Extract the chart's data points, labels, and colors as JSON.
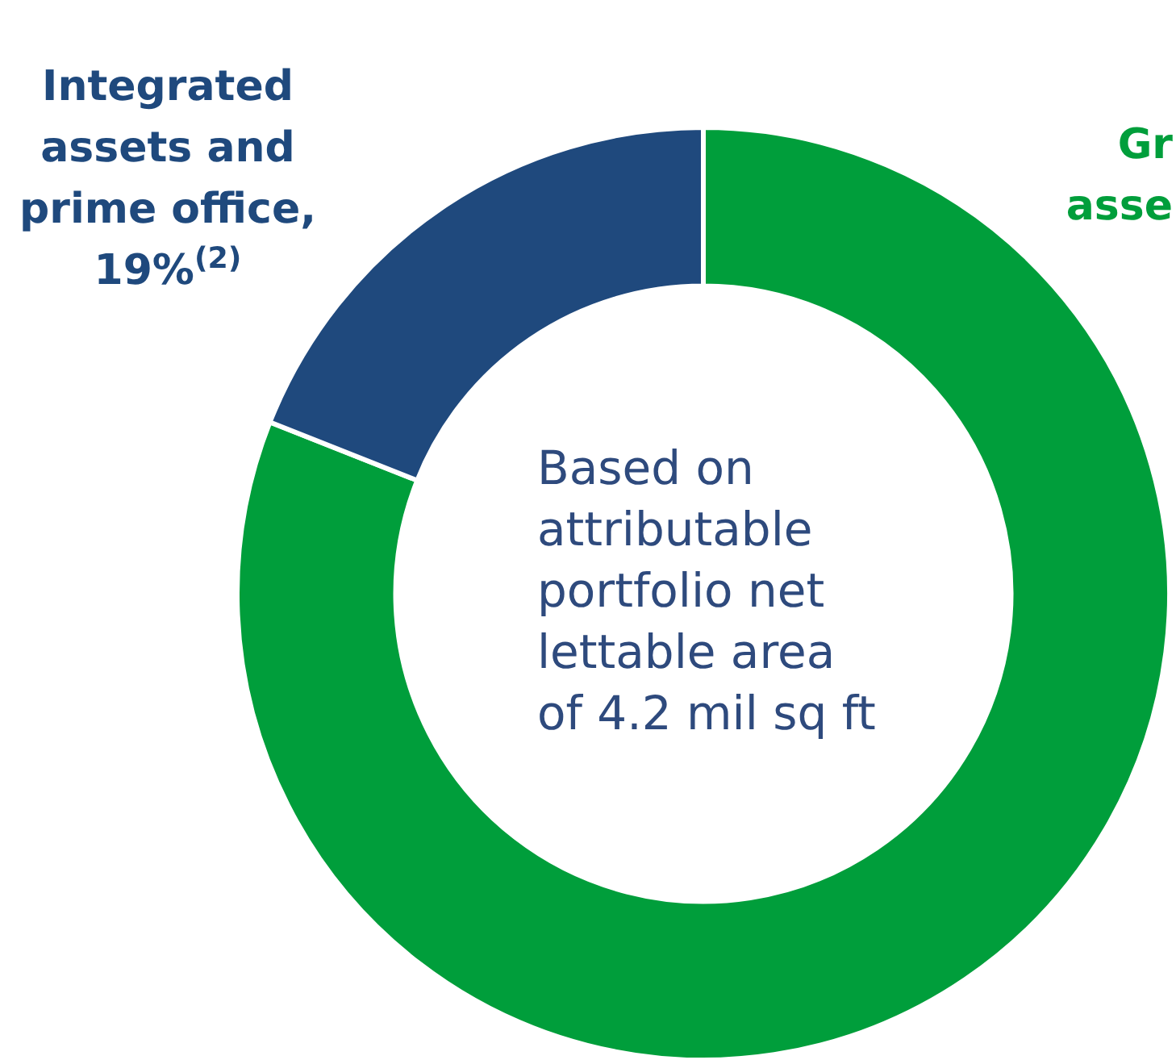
{
  "chart_data": {
    "type": "donut",
    "categories": [
      "Gr\nasse",
      "Integrated\nassets and\nprime office"
    ],
    "values": [
      81,
      19
    ],
    "colors": [
      "#009e3b",
      "#1f497d"
    ],
    "value_labels": [
      null,
      ", 19%$^{(2)}$"
    ],
    "annotations": [
      "Based on\nattributable\nportfolio net\nlettable area\nof 4.2 mil sq ft"
    ]
  }
}
